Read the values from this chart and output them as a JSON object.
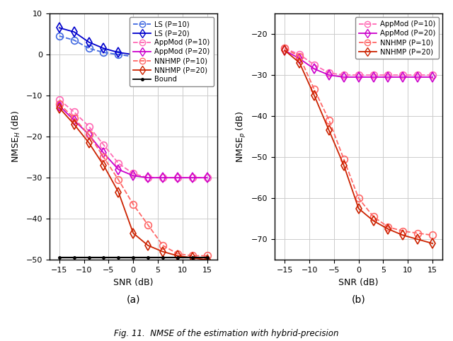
{
  "snr": [
    -15,
    -12,
    -9,
    -6,
    -3,
    0,
    3,
    6,
    9,
    12,
    15
  ],
  "left_ls_p10": [
    4.5,
    3.5,
    1.5,
    0.5,
    0.0,
    -0.5,
    -1.0,
    -1.5,
    -1.5,
    -1.8,
    -2.0
  ],
  "left_ls_p20": [
    6.5,
    5.5,
    3.0,
    1.5,
    0.5,
    0.0,
    -0.5,
    -1.0,
    -1.2,
    -1.5,
    -2.0
  ],
  "left_appmod_p10": [
    -11.0,
    -14.0,
    -17.5,
    -22.0,
    -26.5,
    -29.0,
    -30.0,
    -30.0,
    -30.0,
    -30.0,
    -30.0
  ],
  "left_appmod_p20": [
    -12.5,
    -16.0,
    -19.5,
    -24.0,
    -28.0,
    -29.5,
    -30.0,
    -30.0,
    -30.0,
    -30.0,
    -30.0
  ],
  "left_nnhmp_p10": [
    -12.0,
    -15.5,
    -19.5,
    -25.0,
    -30.5,
    -36.5,
    -41.5,
    -46.5,
    -48.5,
    -49.0,
    -49.0
  ],
  "left_nnhmp_p20": [
    -13.0,
    -17.0,
    -21.5,
    -27.0,
    -33.5,
    -43.5,
    -46.5,
    -48.0,
    -49.0,
    -49.5,
    -50.0
  ],
  "left_bound": [
    -49.5,
    -49.5,
    -49.5,
    -49.5,
    -49.5,
    -49.5,
    -49.5,
    -49.5,
    -49.5,
    -49.5,
    -49.5
  ],
  "right_appmod_p10": [
    -23.5,
    -25.0,
    -27.5,
    -29.5,
    -30.0,
    -30.0,
    -30.0,
    -30.0,
    -30.0,
    -30.0,
    -30.0
  ],
  "right_appmod_p20": [
    -24.0,
    -26.0,
    -28.5,
    -30.0,
    -30.5,
    -30.5,
    -30.5,
    -30.5,
    -30.5,
    -30.5,
    -30.5
  ],
  "right_nnhmp_p10": [
    -23.5,
    -25.5,
    -33.5,
    -41.0,
    -50.5,
    -60.0,
    -64.5,
    -67.0,
    -68.0,
    -68.5,
    -69.0
  ],
  "right_nnhmp_p20": [
    -24.0,
    -27.0,
    -35.0,
    -43.5,
    -52.0,
    -62.5,
    -65.5,
    -67.5,
    -69.0,
    -70.0,
    -71.0
  ],
  "left_ylim": [
    -50,
    10
  ],
  "left_yticks": [
    -50,
    -40,
    -30,
    -20,
    -10,
    0,
    10
  ],
  "right_ylim": [
    -75,
    -15
  ],
  "right_yticks": [
    -70,
    -60,
    -50,
    -40,
    -30,
    -20
  ],
  "xlim": [
    -17,
    17
  ],
  "xticks": [
    -15,
    -10,
    -5,
    0,
    5,
    10,
    15
  ],
  "color_blue_light": "#4169E1",
  "color_blue_dark": "#0000CD",
  "color_magenta_light": "#FF69B4",
  "color_magenta_dark": "#CC00CC",
  "color_red_light": "#FF6666",
  "color_red_dark": "#CC2200",
  "color_black": "#000000",
  "xlabel": "SNR (dB)",
  "left_ylabel": "NMSE$_{H}$ (dB)",
  "right_ylabel": "NMSE$_{p}$ (dB)",
  "left_label_a": "(a)",
  "right_label_b": "(b)",
  "caption": "Fig. 11.  NMSE of the estimation with hybrid-precision",
  "legend_left": [
    "LS (P=10)",
    "LS (P=20)",
    "AppMod (P=10)",
    "AppMod (P=20)",
    "NNHMP (P=10)",
    "NNHMP (P=20)",
    "Bound"
  ],
  "legend_right": [
    "AppMod (P=10)",
    "AppMod (P=20)",
    "NNHMP (P=10)",
    "NNHMP (P=20)"
  ]
}
